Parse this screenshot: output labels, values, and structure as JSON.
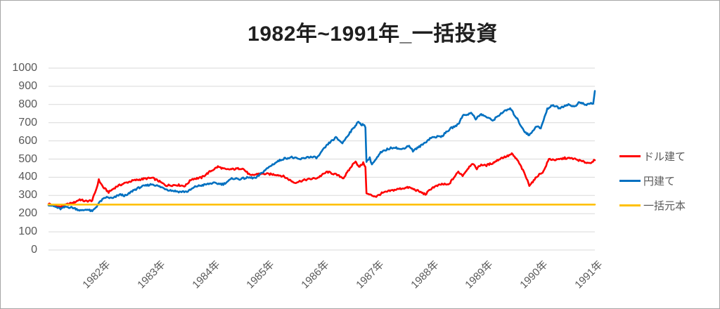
{
  "title": "1982年~1991年_一括投資",
  "chart_data": {
    "type": "line",
    "title": "1982年~1991年_一括投資",
    "grid": "horizontal",
    "grid_color": "#d9d9d9",
    "x_axis": {
      "range_years": [
        1982,
        1992
      ],
      "labels": [
        "1982年",
        "1983年",
        "1984年",
        "1985年",
        "1986年",
        "1987年",
        "1988年",
        "1989年",
        "1990年",
        "1991年"
      ]
    },
    "y_axis": {
      "range": [
        0,
        1000
      ],
      "ticks": [
        0,
        100,
        200,
        300,
        400,
        500,
        600,
        700,
        800,
        900,
        1000
      ]
    },
    "legend": {
      "position": "right",
      "entries": [
        "ドル建て",
        "円建て",
        "一括元本"
      ]
    },
    "series": [
      {
        "name": "ドル建て",
        "color": "#ff0000",
        "points": [
          [
            1982.0,
            255
          ],
          [
            1982.08,
            247
          ],
          [
            1982.22,
            236
          ],
          [
            1982.35,
            252
          ],
          [
            1982.45,
            258
          ],
          [
            1982.57,
            278
          ],
          [
            1982.67,
            268
          ],
          [
            1982.8,
            272
          ],
          [
            1982.88,
            340
          ],
          [
            1982.92,
            385
          ],
          [
            1983.0,
            345
          ],
          [
            1983.1,
            318
          ],
          [
            1983.25,
            350
          ],
          [
            1983.4,
            368
          ],
          [
            1983.55,
            382
          ],
          [
            1983.76,
            392
          ],
          [
            1983.9,
            396
          ],
          [
            1984.0,
            382
          ],
          [
            1984.15,
            355
          ],
          [
            1984.35,
            358
          ],
          [
            1984.5,
            352
          ],
          [
            1984.62,
            390
          ],
          [
            1984.8,
            398
          ],
          [
            1984.95,
            430
          ],
          [
            1985.1,
            458
          ],
          [
            1985.25,
            442
          ],
          [
            1985.4,
            445
          ],
          [
            1985.55,
            450
          ],
          [
            1985.7,
            408
          ],
          [
            1985.85,
            420
          ],
          [
            1986.0,
            418
          ],
          [
            1986.18,
            414
          ],
          [
            1986.3,
            405
          ],
          [
            1986.5,
            370
          ],
          [
            1986.7,
            386
          ],
          [
            1986.92,
            396
          ],
          [
            1987.1,
            430
          ],
          [
            1987.25,
            416
          ],
          [
            1987.4,
            396
          ],
          [
            1987.55,
            462
          ],
          [
            1987.62,
            490
          ],
          [
            1987.68,
            455
          ],
          [
            1987.76,
            478
          ],
          [
            1987.8,
            460
          ],
          [
            1987.82,
            310
          ],
          [
            1987.92,
            300
          ],
          [
            1988.0,
            294
          ],
          [
            1988.1,
            312
          ],
          [
            1988.25,
            325
          ],
          [
            1988.45,
            338
          ],
          [
            1988.6,
            344
          ],
          [
            1988.76,
            325
          ],
          [
            1988.9,
            306
          ],
          [
            1989.02,
            342
          ],
          [
            1989.2,
            362
          ],
          [
            1989.32,
            358
          ],
          [
            1989.42,
            398
          ],
          [
            1989.5,
            430
          ],
          [
            1989.58,
            410
          ],
          [
            1989.67,
            446
          ],
          [
            1989.75,
            476
          ],
          [
            1989.84,
            448
          ],
          [
            1989.92,
            470
          ],
          [
            1990.0,
            464
          ],
          [
            1990.13,
            478
          ],
          [
            1990.28,
            505
          ],
          [
            1990.4,
            516
          ],
          [
            1990.48,
            528
          ],
          [
            1990.58,
            495
          ],
          [
            1990.65,
            458
          ],
          [
            1990.72,
            415
          ],
          [
            1990.8,
            357
          ],
          [
            1990.88,
            380
          ],
          [
            1990.95,
            408
          ],
          [
            1991.06,
            432
          ],
          [
            1991.16,
            500
          ],
          [
            1991.3,
            495
          ],
          [
            1991.45,
            505
          ],
          [
            1991.6,
            503
          ],
          [
            1991.72,
            492
          ],
          [
            1991.8,
            484
          ],
          [
            1991.9,
            478
          ],
          [
            1992.0,
            494
          ]
        ]
      },
      {
        "name": "円建て",
        "color": "#0070c0",
        "points": [
          [
            1982.0,
            250
          ],
          [
            1982.1,
            240
          ],
          [
            1982.22,
            226
          ],
          [
            1982.32,
            238
          ],
          [
            1982.45,
            232
          ],
          [
            1982.6,
            216
          ],
          [
            1982.7,
            224
          ],
          [
            1982.8,
            212
          ],
          [
            1982.88,
            240
          ],
          [
            1982.95,
            268
          ],
          [
            1983.05,
            290
          ],
          [
            1983.18,
            284
          ],
          [
            1983.3,
            305
          ],
          [
            1983.42,
            298
          ],
          [
            1983.55,
            328
          ],
          [
            1983.7,
            348
          ],
          [
            1983.9,
            362
          ],
          [
            1984.0,
            352
          ],
          [
            1984.2,
            330
          ],
          [
            1984.4,
            320
          ],
          [
            1984.55,
            322
          ],
          [
            1984.7,
            350
          ],
          [
            1984.85,
            358
          ],
          [
            1985.0,
            368
          ],
          [
            1985.2,
            362
          ],
          [
            1985.37,
            394
          ],
          [
            1985.5,
            390
          ],
          [
            1985.65,
            398
          ],
          [
            1985.8,
            396
          ],
          [
            1985.95,
            436
          ],
          [
            1986.1,
            470
          ],
          [
            1986.2,
            488
          ],
          [
            1986.3,
            502
          ],
          [
            1986.45,
            510
          ],
          [
            1986.6,
            498
          ],
          [
            1986.75,
            512
          ],
          [
            1986.92,
            508
          ],
          [
            1987.05,
            560
          ],
          [
            1987.15,
            592
          ],
          [
            1987.26,
            618
          ],
          [
            1987.38,
            588
          ],
          [
            1987.5,
            640
          ],
          [
            1987.6,
            676
          ],
          [
            1987.66,
            706
          ],
          [
            1987.72,
            688
          ],
          [
            1987.78,
            692
          ],
          [
            1987.8,
            670
          ],
          [
            1987.82,
            488
          ],
          [
            1987.88,
            505
          ],
          [
            1987.92,
            472
          ],
          [
            1988.0,
            500
          ],
          [
            1988.08,
            535
          ],
          [
            1988.2,
            554
          ],
          [
            1988.33,
            566
          ],
          [
            1988.45,
            552
          ],
          [
            1988.6,
            574
          ],
          [
            1988.67,
            545
          ],
          [
            1988.85,
            580
          ],
          [
            1989.0,
            618
          ],
          [
            1989.2,
            626
          ],
          [
            1989.36,
            668
          ],
          [
            1989.5,
            690
          ],
          [
            1989.58,
            740
          ],
          [
            1989.75,
            752
          ],
          [
            1989.82,
            722
          ],
          [
            1989.92,
            746
          ],
          [
            1990.0,
            734
          ],
          [
            1990.13,
            712
          ],
          [
            1990.3,
            755
          ],
          [
            1990.45,
            778
          ],
          [
            1990.58,
            720
          ],
          [
            1990.65,
            682
          ],
          [
            1990.72,
            650
          ],
          [
            1990.8,
            630
          ],
          [
            1990.93,
            682
          ],
          [
            1991.01,
            668
          ],
          [
            1991.13,
            775
          ],
          [
            1991.22,
            798
          ],
          [
            1991.35,
            780
          ],
          [
            1991.5,
            800
          ],
          [
            1991.62,
            788
          ],
          [
            1991.72,
            812
          ],
          [
            1991.83,
            798
          ],
          [
            1991.93,
            806
          ],
          [
            1991.97,
            806
          ],
          [
            1992.0,
            874
          ]
        ]
      },
      {
        "name": "一括元本",
        "color": "#ffc000",
        "points": [
          [
            1982.0,
            250
          ],
          [
            1992.0,
            250
          ]
        ]
      }
    ]
  },
  "colors": {
    "grid": "#d9d9d9",
    "axis_text": "#595959",
    "title_text": "#1f1f1f",
    "border": "#a6a6a6",
    "series_dollar": "#ff0000",
    "series_yen": "#0070c0",
    "series_principal": "#ffc000"
  }
}
